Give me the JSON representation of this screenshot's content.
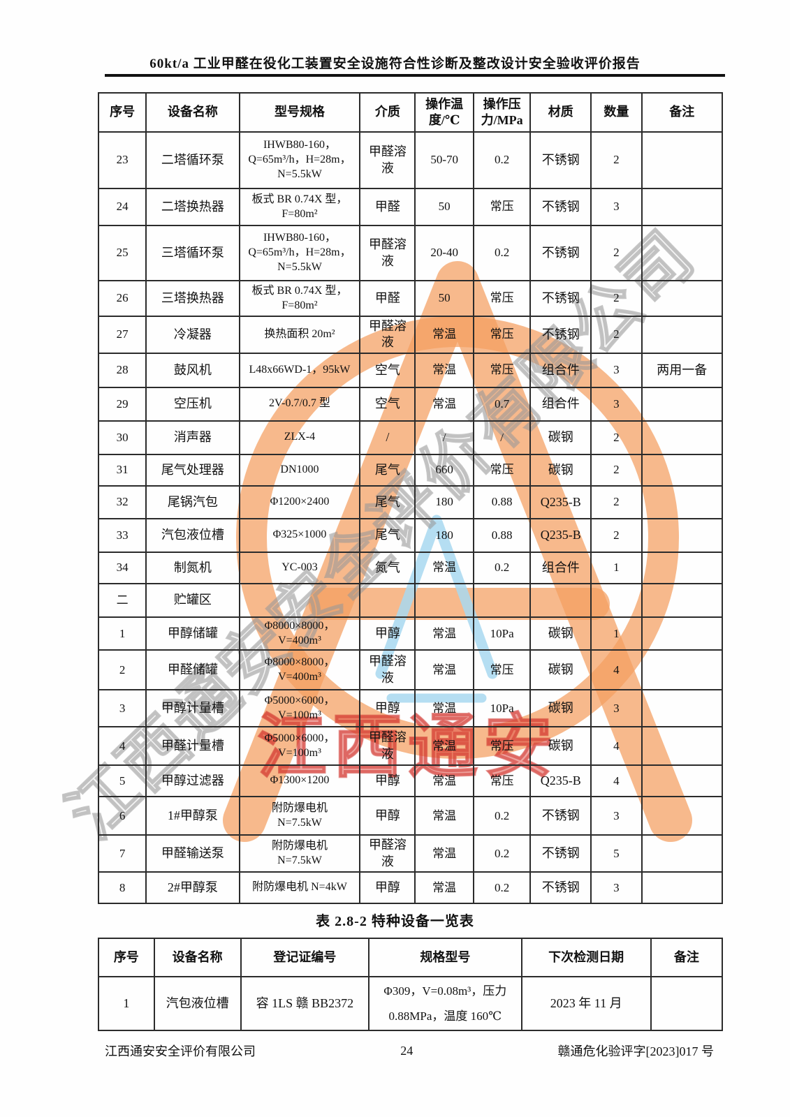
{
  "page": {
    "header_title": "60kt/a 工业甲醛在役化工装置安全设施符合性诊断及整改设计安全验收评价报告",
    "footer": {
      "company": "江西通安安全评价有限公司",
      "page_number": "24",
      "doc_number": "赣通危化验评字[2023]017 号"
    }
  },
  "equipment_table": {
    "headers": [
      "序号",
      "设备名称",
      "型号规格",
      "介质",
      "操作温度/℃",
      "操作压力/MPa",
      "材质",
      "数量",
      "备注"
    ],
    "rows": [
      [
        "23",
        "二塔循环泵",
        "IHWB80-160，\nQ=65m³/h，H=28m，\nN=5.5kW",
        "甲醛溶液",
        "50-70",
        "0.2",
        "不锈钢",
        "2",
        ""
      ],
      [
        "24",
        "二塔换热器",
        "板式 BR 0.74X 型，\nF=80m²",
        "甲醛",
        "50",
        "常压",
        "不锈钢",
        "3",
        ""
      ],
      [
        "25",
        "三塔循环泵",
        "IHWB80-160，\nQ=65m³/h，H=28m，\nN=5.5kW",
        "甲醛溶液",
        "20-40",
        "0.2",
        "不锈钢",
        "2",
        ""
      ],
      [
        "26",
        "三塔换热器",
        "板式 BR 0.74X 型，\nF=80m²",
        "甲醛",
        "50",
        "常压",
        "不锈钢",
        "2",
        ""
      ],
      [
        "27",
        "冷凝器",
        "换热面积 20m²",
        "甲醛溶液",
        "常温",
        "常压",
        "不锈钢",
        "2",
        ""
      ],
      [
        "28",
        "鼓风机",
        "L48x66WD-1，95kW",
        "空气",
        "常温",
        "常压",
        "组合件",
        "3",
        "两用一备"
      ],
      [
        "29",
        "空压机",
        "2V-0.7/0.7 型",
        "空气",
        "常温",
        "0.7",
        "组合件",
        "3",
        ""
      ],
      [
        "30",
        "消声器",
        "ZLX-4",
        "/",
        "/",
        "/",
        "碳钢",
        "2",
        ""
      ],
      [
        "31",
        "尾气处理器",
        "DN1000",
        "尾气",
        "660",
        "常压",
        "碳钢",
        "2",
        ""
      ],
      [
        "32",
        "尾锅汽包",
        "Φ1200×2400",
        "尾气",
        "180",
        "0.88",
        "Q235-B",
        "2",
        ""
      ],
      [
        "33",
        "汽包液位槽",
        "Φ325×1000",
        "尾气",
        "180",
        "0.88",
        "Q235-B",
        "2",
        ""
      ],
      [
        "34",
        "制氮机",
        "YC-003",
        "氮气",
        "常温",
        "0.2",
        "组合件",
        "1",
        ""
      ],
      [
        "二",
        "贮罐区",
        "",
        "",
        "",
        "",
        "",
        "",
        ""
      ],
      [
        "1",
        "甲醇储罐",
        "Φ8000×8000，\nV=400m³",
        "甲醇",
        "常温",
        "10Pa",
        "碳钢",
        "1",
        ""
      ],
      [
        "2",
        "甲醛储罐",
        "Φ8000×8000，\nV=400m³",
        "甲醛溶液",
        "常温",
        "常压",
        "碳钢",
        "4",
        ""
      ],
      [
        "3",
        "甲醇计量槽",
        "Φ5000×6000，\nV=100m³",
        "甲醇",
        "常温",
        "10Pa",
        "碳钢",
        "3",
        ""
      ],
      [
        "4",
        "甲醛计量槽",
        "Φ5000×6000，\nV=100m³",
        "甲醛溶液",
        "常温",
        "常压",
        "碳钢",
        "4",
        ""
      ],
      [
        "5",
        "甲醇过滤器",
        "Φ1300×1200",
        "甲醇",
        "常温",
        "常压",
        "Q235-B",
        "4",
        ""
      ],
      [
        "6",
        "1#甲醇泵",
        "附防爆电机\nN=7.5kW",
        "甲醇",
        "常温",
        "0.2",
        "不锈钢",
        "3",
        ""
      ],
      [
        "7",
        "甲醛输送泵",
        "附防爆电机\nN=7.5kW",
        "甲醛溶液",
        "常温",
        "0.2",
        "不锈钢",
        "5",
        ""
      ],
      [
        "8",
        "2#甲醇泵",
        "附防爆电机 N=4kW",
        "甲醇",
        "常温",
        "0.2",
        "不锈钢",
        "3",
        ""
      ]
    ]
  },
  "special_table": {
    "title": "表 2.8-2  特种设备一览表",
    "headers": [
      "序号",
      "设备名称",
      "登记证编号",
      "规格型号",
      "下次检测日期",
      "备注"
    ],
    "rows": [
      [
        "1",
        "汽包液位槽",
        "容 1LS 赣 BB2372",
        "Φ309，V=0.08m³，压力\n0.88MPa，温度 160℃",
        "2023 年 11 月",
        ""
      ]
    ]
  },
  "watermark": {
    "diagonal_text": "江西通安安全评价有限公司",
    "red_text": "江西通安",
    "orange_color": "#f4a269",
    "blue_color": "#a8d8f0",
    "red_color": "#dd483e"
  }
}
